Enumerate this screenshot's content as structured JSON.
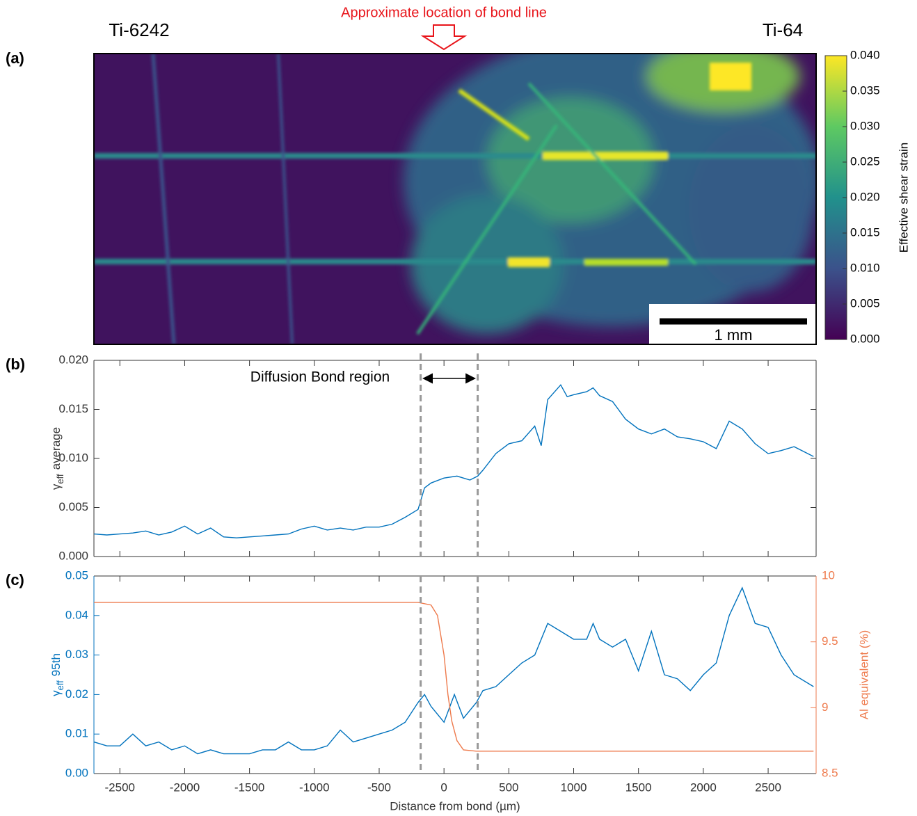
{
  "chart_data": [
    {
      "type": "heatmap",
      "panel": "(a)",
      "left_label": "Ti-6242",
      "right_label": "Ti-64",
      "annotation": "Approximate location of  bond line",
      "scale_bar": "1 mm",
      "colorbar": {
        "label": "Effective shear strain",
        "lim": [
          0,
          0.04
        ],
        "ticks": [
          {
            "value": 0,
            "label": "0.000"
          },
          {
            "value": 0.005,
            "label": "0.005"
          },
          {
            "value": 0.01,
            "label": "0.010"
          },
          {
            "value": 0.015,
            "label": "0.015"
          },
          {
            "value": 0.02,
            "label": "0.020"
          },
          {
            "value": 0.025,
            "label": "0.025"
          },
          {
            "value": 0.03,
            "label": "0.030"
          },
          {
            "value": 0.035,
            "label": "0.035"
          },
          {
            "value": 0.04,
            "label": "0.040"
          }
        ]
      }
    },
    {
      "type": "line",
      "panel": "(b)",
      "ylabel": {
        "symbol": "γ",
        "subscript": "eff",
        "text": "average"
      },
      "annotation": "Diffusion Bond region",
      "vlines": [
        -180,
        260
      ],
      "xlim": [
        -2700,
        2870
      ],
      "xticks": [
        -2500,
        -2000,
        -1500,
        -1000,
        -500,
        0,
        500,
        1000,
        1500,
        2000,
        2500
      ],
      "ylim": [
        0,
        0.02
      ],
      "yticks": [
        {
          "value": 0,
          "label": "0.000"
        },
        {
          "value": 0.005,
          "label": "0.005"
        },
        {
          "value": 0.01,
          "label": "0.010"
        },
        {
          "value": 0.015,
          "label": "0.015"
        },
        {
          "value": 0.02,
          "label": "0.020"
        }
      ],
      "series": [
        {
          "color": "#0072bd",
          "x": [
            -2700,
            -2600,
            -2500,
            -2400,
            -2300,
            -2200,
            -2100,
            -2000,
            -1900,
            -1800,
            -1700,
            -1600,
            -1500,
            -1400,
            -1300,
            -1200,
            -1100,
            -1000,
            -900,
            -800,
            -700,
            -600,
            -500,
            -400,
            -300,
            -200,
            -150,
            -100,
            0,
            100,
            200,
            260,
            300,
            400,
            500,
            600,
            700,
            750,
            800,
            900,
            950,
            1000,
            1100,
            1150,
            1200,
            1300,
            1400,
            1500,
            1600,
            1700,
            1800,
            1900,
            2000,
            2100,
            2200,
            2300,
            2400,
            2500,
            2600,
            2700,
            2850
          ],
          "values": [
            0.0023,
            0.0022,
            0.0023,
            0.0024,
            0.0026,
            0.0022,
            0.0025,
            0.0031,
            0.0023,
            0.0029,
            0.002,
            0.0019,
            0.002,
            0.0021,
            0.0022,
            0.0023,
            0.0028,
            0.0031,
            0.0027,
            0.0029,
            0.0027,
            0.003,
            0.003,
            0.0033,
            0.004,
            0.0048,
            0.007,
            0.0075,
            0.008,
            0.0082,
            0.0078,
            0.0082,
            0.0088,
            0.0105,
            0.0115,
            0.0118,
            0.0133,
            0.0113,
            0.016,
            0.0175,
            0.0163,
            0.0165,
            0.0168,
            0.0172,
            0.0164,
            0.0158,
            0.014,
            0.013,
            0.0125,
            0.013,
            0.0122,
            0.012,
            0.0117,
            0.011,
            0.0138,
            0.013,
            0.0115,
            0.0105,
            0.0108,
            0.0112,
            0.0102
          ]
        }
      ]
    },
    {
      "type": "line",
      "panel": "(c)",
      "xlabel": "Distance from bond (µm)",
      "ylabel": {
        "symbol": "γ",
        "subscript": "eff",
        "text": "95th"
      },
      "y2label": "Al equivalent (%)",
      "vlines": [
        -180,
        260
      ],
      "xlim": [
        -2700,
        2870
      ],
      "xticks": [
        -2500,
        -2000,
        -1500,
        -1000,
        -500,
        0,
        500,
        1000,
        1500,
        2000,
        2500
      ],
      "ylim": [
        0,
        0.05
      ],
      "yticks": [
        {
          "value": 0,
          "label": "0.00"
        },
        {
          "value": 0.01,
          "label": "0.01"
        },
        {
          "value": 0.02,
          "label": "0.02"
        },
        {
          "value": 0.03,
          "label": "0.03"
        },
        {
          "value": 0.04,
          "label": "0.04"
        },
        {
          "value": 0.05,
          "label": "0.05"
        }
      ],
      "y2lim": [
        8.5,
        10
      ],
      "y2ticks": [
        8.5,
        9,
        9.5,
        10
      ],
      "series": [
        {
          "color": "#0072bd",
          "x": [
            -2700,
            -2600,
            -2500,
            -2400,
            -2300,
            -2200,
            -2100,
            -2000,
            -1900,
            -1800,
            -1700,
            -1600,
            -1500,
            -1400,
            -1300,
            -1200,
            -1100,
            -1000,
            -900,
            -800,
            -700,
            -600,
            -500,
            -400,
            -300,
            -200,
            -150,
            -100,
            0,
            80,
            150,
            250,
            300,
            400,
            500,
            600,
            700,
            800,
            900,
            1000,
            1100,
            1150,
            1200,
            1300,
            1400,
            1500,
            1600,
            1700,
            1800,
            1900,
            2000,
            2100,
            2200,
            2300,
            2400,
            2500,
            2600,
            2700,
            2850
          ],
          "values": [
            0.008,
            0.007,
            0.007,
            0.01,
            0.007,
            0.008,
            0.006,
            0.007,
            0.005,
            0.006,
            0.005,
            0.005,
            0.005,
            0.006,
            0.006,
            0.008,
            0.006,
            0.006,
            0.007,
            0.011,
            0.008,
            0.009,
            0.01,
            0.011,
            0.013,
            0.018,
            0.02,
            0.017,
            0.013,
            0.02,
            0.014,
            0.018,
            0.021,
            0.022,
            0.025,
            0.028,
            0.03,
            0.038,
            0.036,
            0.034,
            0.034,
            0.038,
            0.034,
            0.032,
            0.034,
            0.026,
            0.036,
            0.025,
            0.024,
            0.021,
            0.025,
            0.028,
            0.04,
            0.047,
            0.038,
            0.037,
            0.03,
            0.025,
            0.022
          ]
        },
        {
          "color": "#ee7a4c",
          "axis": "y2",
          "x": [
            -2700,
            -200,
            -100,
            -50,
            0,
            30,
            60,
            100,
            150,
            250,
            2850
          ],
          "values": [
            9.8,
            9.8,
            9.78,
            9.7,
            9.4,
            9.1,
            8.9,
            8.75,
            8.68,
            8.67,
            8.67
          ]
        }
      ]
    }
  ]
}
